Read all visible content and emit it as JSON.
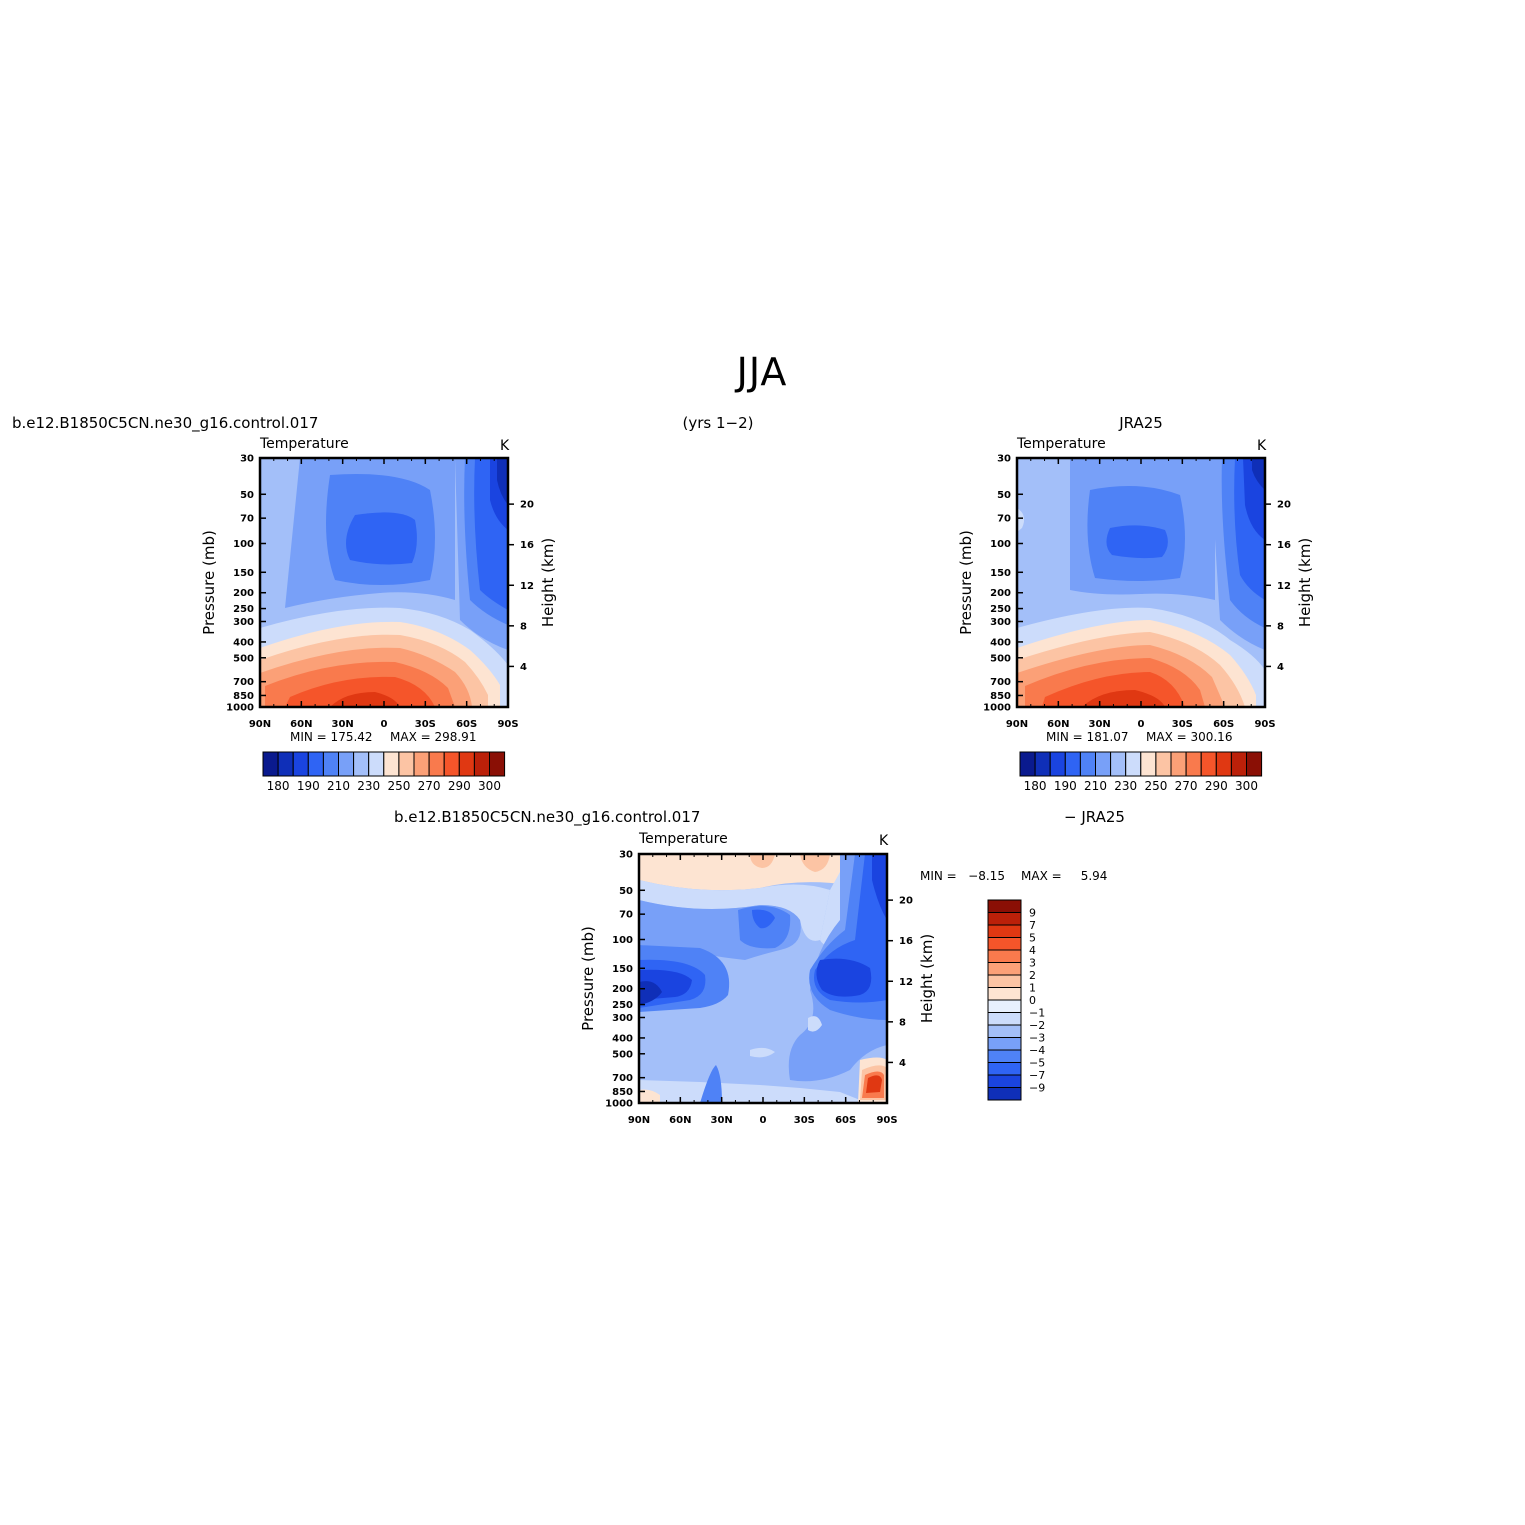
{
  "figure": {
    "title": "JJA",
    "left_case": "b.e12.B1850C5CN.ne30_g16.control.017",
    "years": "(yrs 1−2)",
    "right_case": "JRA25",
    "diff_case_left": "b.e12.B1850C5CN.ne30_g16.control.017",
    "diff_case_right": "− JRA25"
  },
  "panels": [
    {
      "id": "model",
      "variable": "Temperature",
      "units": "K",
      "ylabel": "Pressure (mb)",
      "y2label": "Height (km)",
      "min_label": "MIN = 175.42",
      "max_label": "MAX = 298.91"
    },
    {
      "id": "obs",
      "variable": "Temperature",
      "units": "K",
      "ylabel": "Pressure (mb)",
      "y2label": "Height (km)",
      "min_label": "MIN = 181.07",
      "max_label": "MAX = 300.16"
    },
    {
      "id": "diff",
      "variable": "Temperature",
      "units": "K",
      "ylabel": "Pressure (mb)",
      "y2label": "Height (km)",
      "min_label": "MIN =   −8.15",
      "max_label": "MAX =     5.94"
    }
  ],
  "axes": {
    "x_ticks": [
      "90N",
      "60N",
      "30N",
      "0",
      "30S",
      "60S",
      "90S"
    ],
    "p_ticks": [
      "30",
      "50",
      "70",
      "100",
      "150",
      "200",
      "250",
      "300",
      "400",
      "500",
      "700",
      "850",
      "1000"
    ],
    "z_ticks": [
      "20",
      "16",
      "12",
      "8",
      "4"
    ]
  },
  "colorbars": {
    "abs_labels": [
      "180",
      "190",
      "210",
      "230",
      "250",
      "270",
      "290",
      "300"
    ],
    "abs_colors": [
      "#0a1a8e",
      "#0f2fb8",
      "#1a44e0",
      "#2f64f4",
      "#4f82f6",
      "#78a0f8",
      "#a3bff9",
      "#ccdcfb",
      "#fde4d2",
      "#fcc4a4",
      "#fba077",
      "#f97a4d",
      "#f5552a",
      "#e03812",
      "#bb2009",
      "#8a0f05"
    ],
    "diff_labels": [
      "9",
      "7",
      "5",
      "4",
      "3",
      "2",
      "1",
      "0",
      "−1",
      "−2",
      "−3",
      "−4",
      "−5",
      "−7",
      "−9"
    ],
    "diff_colors": [
      "#8a0f05",
      "#bb2009",
      "#e03812",
      "#f5552a",
      "#f97a4d",
      "#fba077",
      "#fcc4a4",
      "#fde4d2",
      "#e8f0fd",
      "#ccdcfb",
      "#a3bff9",
      "#78a0f8",
      "#4f82f6",
      "#2f64f4",
      "#1a44e0",
      "#0f2fb8"
    ]
  },
  "chart_data": [
    {
      "type": "heatmap",
      "title": "Temperature",
      "units": "K",
      "xlabel": "",
      "ylabel": "Pressure (mb)",
      "y2label": "Height (km)",
      "x": [
        "90N",
        "60N",
        "30N",
        "0",
        "30S",
        "60S",
        "90S"
      ],
      "y": [
        30,
        50,
        70,
        100,
        150,
        200,
        250,
        300,
        400,
        500,
        700,
        850,
        1000
      ],
      "min": 175.42,
      "max": 298.91
    },
    {
      "type": "heatmap",
      "title": "Temperature",
      "units": "K",
      "xlabel": "",
      "ylabel": "Pressure (mb)",
      "y2label": "Height (km)",
      "x": [
        "90N",
        "60N",
        "30N",
        "0",
        "30S",
        "60S",
        "90S"
      ],
      "y": [
        30,
        50,
        70,
        100,
        150,
        200,
        250,
        300,
        400,
        500,
        700,
        850,
        1000
      ],
      "min": 181.07,
      "max": 300.16
    },
    {
      "type": "heatmap",
      "title": "Temperature",
      "units": "K",
      "xlabel": "",
      "ylabel": "Pressure (mb)",
      "y2label": "Height (km)",
      "x": [
        "90N",
        "60N",
        "30N",
        "0",
        "30S",
        "60S",
        "90S"
      ],
      "y": [
        30,
        50,
        70,
        100,
        150,
        200,
        250,
        300,
        400,
        500,
        700,
        850,
        1000
      ],
      "min": -8.15,
      "max": 5.94
    }
  ]
}
